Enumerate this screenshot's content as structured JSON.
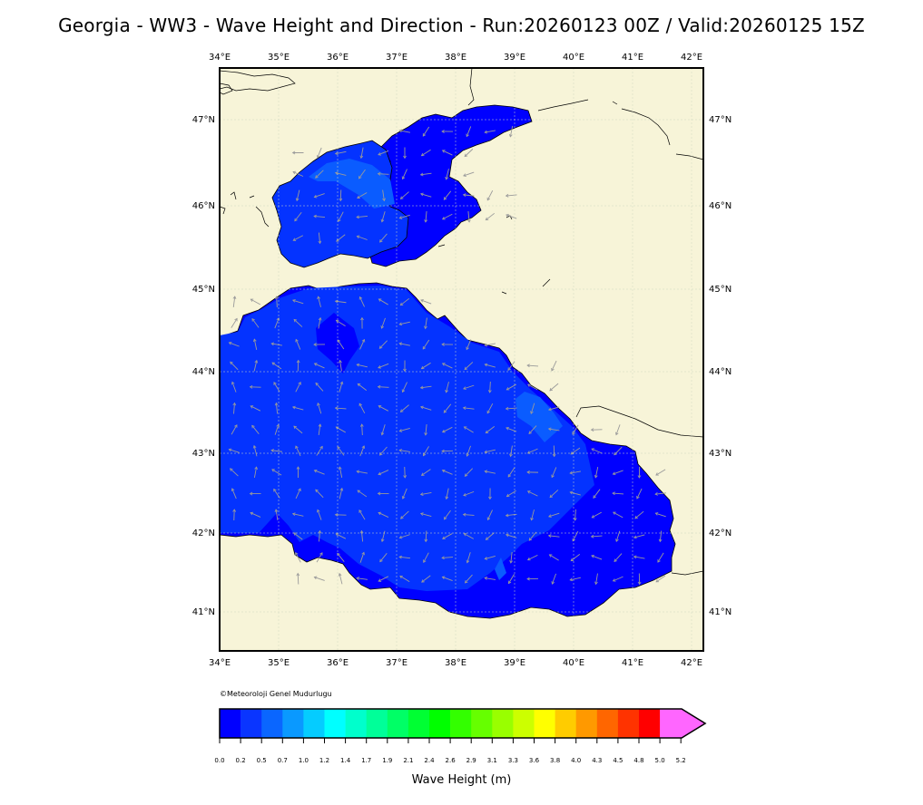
{
  "title": "Georgia - WW3 - Wave Height and Direction - Run:20260123 00Z / Valid:20260125 15Z",
  "map": {
    "lon_labels": [
      "34°E",
      "35°E",
      "36°E",
      "37°E",
      "38°E",
      "39°E",
      "40°E",
      "41°E",
      "42°E"
    ],
    "lat_labels": [
      "47°N",
      "46°N",
      "45°N",
      "44°N",
      "43°N",
      "42°N",
      "41°N"
    ],
    "lon_range": [
      34,
      42.2
    ],
    "lat_range": [
      40.5,
      47.6
    ],
    "colors": {
      "land": "#f7f4d8",
      "sea_deep_blue": "#0000ff",
      "sea_blue": "#0433ff",
      "sea_light_blue": "#0a5cff",
      "arrows": "#9a9a9a"
    }
  },
  "copyright": "©Meteoroloji Genel Mudurlugu",
  "colorbar": {
    "label": "Wave Height (m)",
    "ticks": [
      "0.0",
      "0.2",
      "0.5",
      "0.7",
      "1.0",
      "1.2",
      "1.4",
      "1.7",
      "1.9",
      "2.1",
      "2.4",
      "2.6",
      "2.9",
      "3.1",
      "3.3",
      "3.6",
      "3.8",
      "4.0",
      "4.3",
      "4.5",
      "4.8",
      "5.0",
      "5.2"
    ],
    "colors": [
      "#0000ff",
      "#0a35ff",
      "#0a66ff",
      "#0a99ff",
      "#05ccff",
      "#00ffff",
      "#00ffcc",
      "#00ff99",
      "#00ff66",
      "#00ff33",
      "#00ff00",
      "#33ff00",
      "#66ff00",
      "#99ff00",
      "#ccff00",
      "#ffff00",
      "#ffcc00",
      "#ff9900",
      "#ff6600",
      "#ff3300",
      "#ff0000",
      "#ff66ff"
    ]
  }
}
